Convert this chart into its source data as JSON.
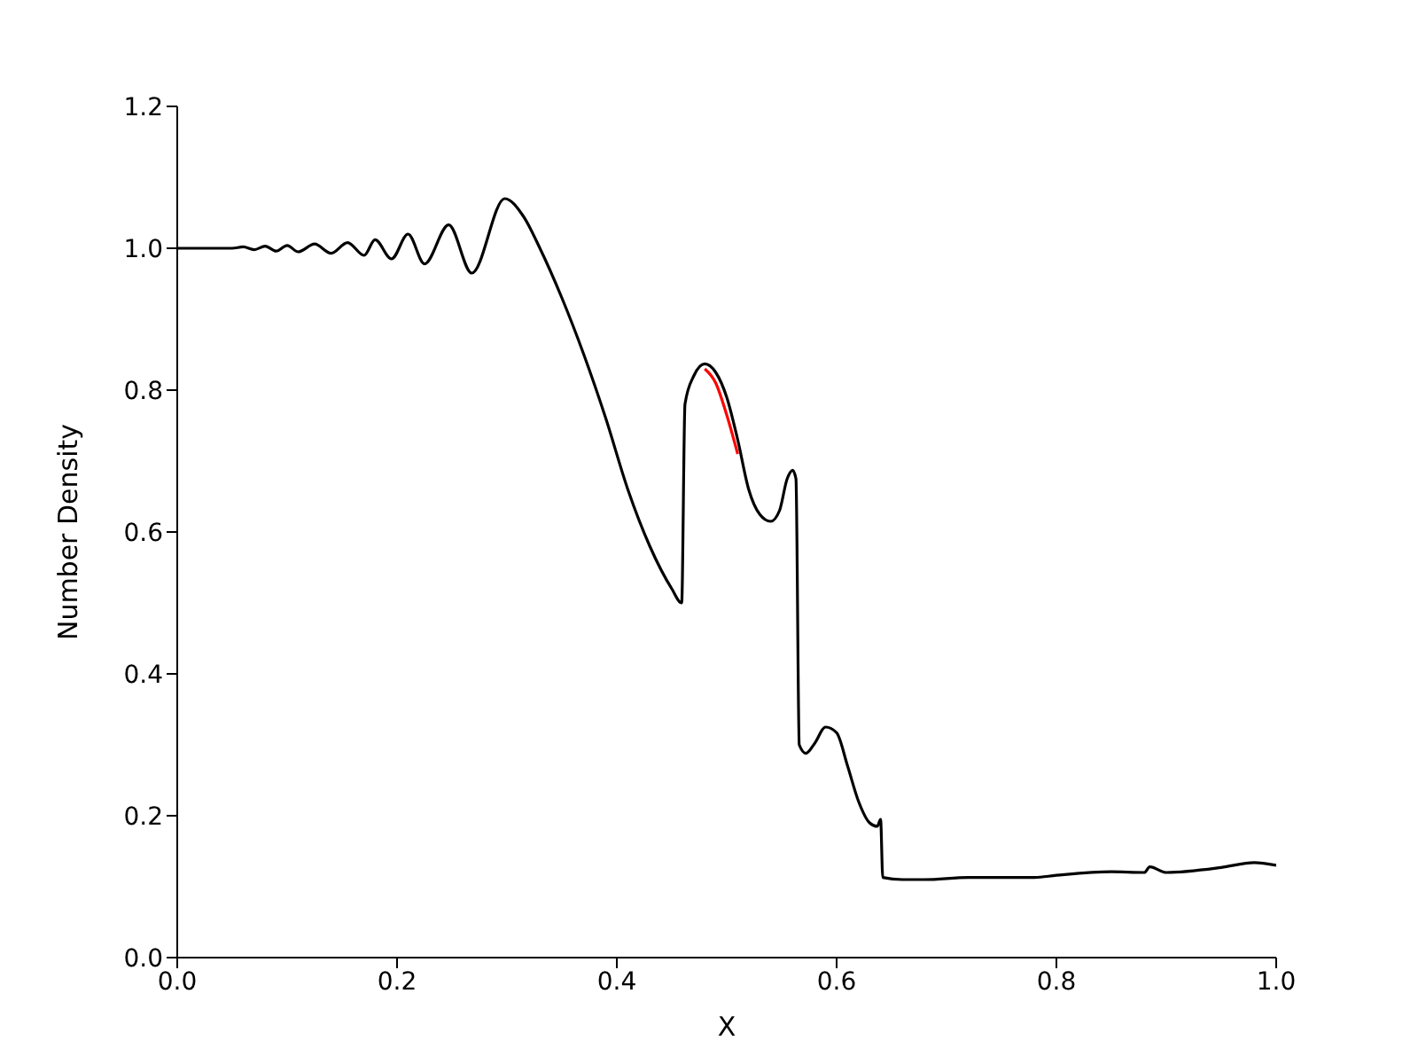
{
  "chart_data": {
    "type": "line",
    "xlabel": "X",
    "ylabel": "Number Density",
    "x": [
      0,
      0.03,
      0.05,
      0.06,
      0.07,
      0.08,
      0.09,
      0.1,
      0.11,
      0.125,
      0.14,
      0.155,
      0.17,
      0.18,
      0.195,
      0.21,
      0.225,
      0.247,
      0.268,
      0.298,
      0.315,
      0.33,
      0.35,
      0.37,
      0.39,
      0.41,
      0.43,
      0.45,
      0.459,
      0.462,
      0.47,
      0.48,
      0.49,
      0.5,
      0.51,
      0.52,
      0.53,
      0.54,
      0.548,
      0.555,
      0.56,
      0.563,
      0.566,
      0.572,
      0.58,
      0.59,
      0.6,
      0.61,
      0.62,
      0.63,
      0.637,
      0.64,
      0.642,
      0.66,
      0.68,
      0.72,
      0.78,
      0.8,
      0.85,
      0.88,
      0.885,
      0.9,
      0.95,
      0.98,
      1.0
    ],
    "series": [
      {
        "color": "#ff0000",
        "values": [
          null,
          null,
          null,
          null,
          null,
          null,
          null,
          null,
          null,
          null,
          null,
          null,
          null,
          null,
          null,
          null,
          null,
          null,
          null,
          null,
          null,
          null,
          null,
          null,
          null,
          null,
          null,
          null,
          null,
          null,
          null,
          0.83,
          0.81,
          0.765,
          0.71,
          null,
          null,
          null,
          null,
          null,
          null,
          null,
          null,
          null,
          null,
          null,
          null,
          null,
          null,
          null,
          null,
          null,
          null,
          null,
          null,
          null,
          null,
          null,
          null,
          null,
          null,
          null,
          null,
          null,
          null
        ]
      },
      {
        "color": "#000000",
        "values": [
          1.0,
          1.0,
          1.0,
          1.002,
          0.998,
          1.003,
          0.996,
          1.004,
          0.995,
          1.006,
          0.993,
          1.008,
          0.99,
          1.012,
          0.985,
          1.02,
          0.978,
          1.033,
          0.965,
          1.07,
          1.045,
          1.0,
          0.93,
          0.85,
          0.76,
          0.66,
          0.58,
          0.52,
          0.5,
          0.78,
          0.82,
          0.837,
          0.825,
          0.79,
          0.73,
          0.66,
          0.625,
          0.615,
          0.63,
          0.675,
          0.687,
          0.675,
          0.3,
          0.288,
          0.302,
          0.325,
          0.317,
          0.27,
          0.22,
          0.19,
          0.185,
          0.195,
          0.113,
          0.11,
          0.11,
          0.113,
          0.113,
          0.116,
          0.121,
          0.12,
          0.128,
          0.12,
          0.127,
          0.134,
          0.13
        ]
      }
    ],
    "xlim": [
      0,
      1
    ],
    "xticks": [
      {
        "value": 0,
        "label": "0.0"
      },
      {
        "value": 0.2,
        "label": "0.2"
      },
      {
        "value": 0.4,
        "label": "0.4"
      },
      {
        "value": 0.6,
        "label": "0.6"
      },
      {
        "value": 0.8,
        "label": "0.8"
      },
      {
        "value": 1,
        "label": "1.0"
      }
    ],
    "ylim": [
      0,
      1.2
    ],
    "yticks": [
      {
        "value": 0,
        "label": "0.0"
      },
      {
        "value": 0.2,
        "label": "0.2"
      },
      {
        "value": 0.4,
        "label": "0.4"
      },
      {
        "value": 0.6,
        "label": "0.6"
      },
      {
        "value": 0.8,
        "label": "0.8"
      },
      {
        "value": 1,
        "label": "1.0"
      },
      {
        "value": 1.2,
        "label": "1.2"
      }
    ],
    "grid": false
  }
}
